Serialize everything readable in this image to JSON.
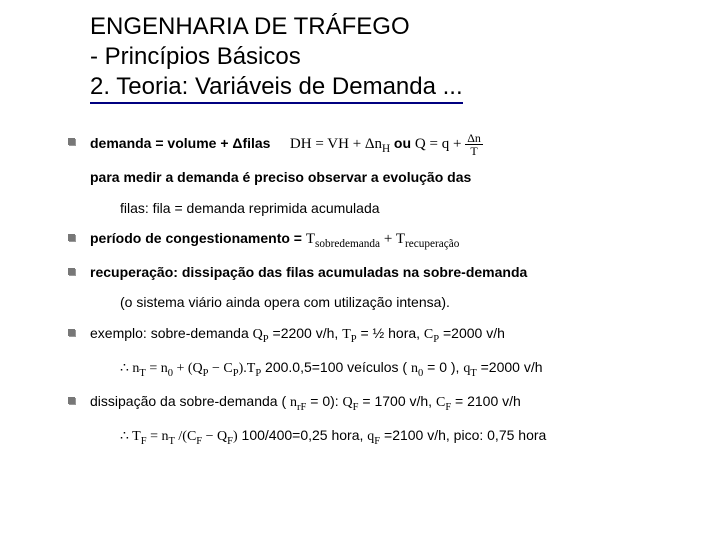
{
  "title": {
    "line1": "ENGENHARIA DE TRÁFEGO",
    "line2": "- Princípios Básicos",
    "line3_prefix": "2. Teoria: Variáveis de Demanda ",
    "line3_dots": "..."
  },
  "colors": {
    "underline": "#000080",
    "text": "#000000",
    "background": "#ffffff"
  },
  "body": {
    "l1_a": "demanda = volume + Δfilas",
    "l1_b": "DH  = VH + Δn",
    "l1_b_sub": "H",
    "l1_c": " ou ",
    "l1_d": "Q = q + ",
    "l1_frac_num": "Δn",
    "l1_frac_den": "T",
    "l2": "para medir a demanda é preciso observar a evolução das",
    "l3": "filas: fila = demanda reprimida acumulada",
    "l4_a": "período de congestionamento = ",
    "l4_T1": "T",
    "l4_sub1": "sobredemanda",
    "l4_plus": " + ",
    "l4_T2": "T",
    "l4_sub2": "recuperação",
    "l5": "recuperação: dissipação das filas acumuladas na sobre-demanda",
    "l6": "(o sistema viário ainda opera com utilização intensa).",
    "l7_a": "exemplo: sobre-demanda ",
    "l7_qp": "Q",
    "l7_qp_sub": "P",
    "l7_b": " =2200 v/h,  ",
    "l7_tp": "T",
    "l7_tp_sub": "P",
    "l7_c": " = ½ hora,  ",
    "l7_cp": "C",
    "l7_cp_sub": "P",
    "l7_d": " =2000 v/h",
    "l8_pre": "∴ ",
    "l8_nt": "n",
    "l8_nt_sub": "T",
    "l8_eq": " = n",
    "l8_n0_sub": "0",
    "l8_plus": " + (Q",
    "l8_qp_sub": "P",
    "l8_minus": " − C",
    "l8_cp_sub": "P",
    "l8_close": ").T",
    "l8_tp_sub": "P",
    "l8_tail": "   200.0,5=100 veículos (   ",
    "l8_n0b": "n",
    "l8_n0b_sub": "0",
    "l8_tail2": " = 0   ),  ",
    "l8_qt": "q",
    "l8_qt_sub": "T",
    "l8_tail3": " =2000 v/h",
    "l9_a": "dissipação da sobre-demanda ( ",
    "l9_n": "n",
    "l9_n_sub": "rF",
    "l9_b": " = 0):   ",
    "l9_qf": "Q",
    "l9_qf_sub": "F",
    "l9_c": " = 1700 v/h,   ",
    "l9_cf": "C",
    "l9_cf_sub": "F",
    "l9_d": " = 2100 v/h",
    "l10_pre": "∴ ",
    "l10_tf": "T",
    "l10_tf_sub": "F",
    "l10_eq": " = n",
    "l10_nt_sub": "T",
    "l10_div": " /(C",
    "l10_cf_sub": "F",
    "l10_minus": " − Q",
    "l10_qf_sub": "F",
    "l10_close": ")",
    "l10_tail": "   100/400=0,25 hora,  ",
    "l10_qf2": "q",
    "l10_qf2_sub": "F",
    "l10_tail2": " =2100 v/h, pico: 0,75 hora"
  }
}
